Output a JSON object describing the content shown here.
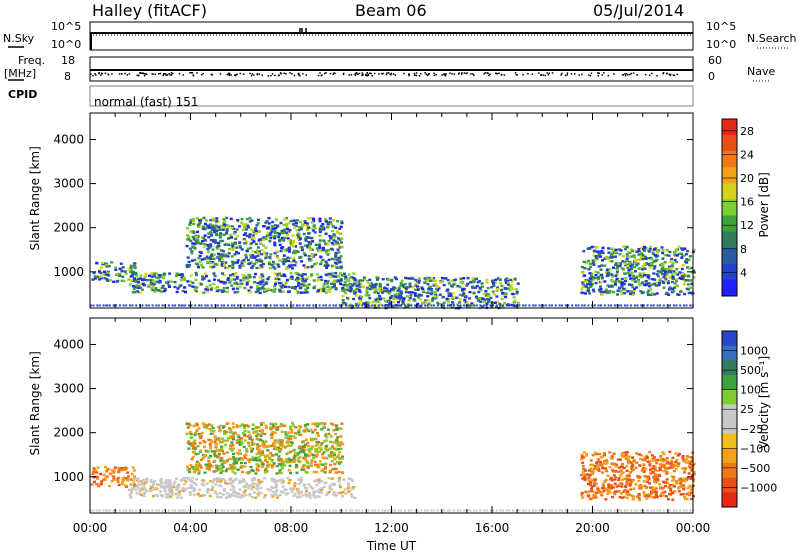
{
  "header": {
    "station": "Halley (fitACF)",
    "beam": "Beam 06",
    "date": "05/Jul/2014"
  },
  "strip_labels": {
    "nsky": "N.Sky",
    "nsky_top": "10^5",
    "nsky_bottom": "10^0",
    "nsearch": "N.Search",
    "nsearch_top": "10^5",
    "nsearch_bottom": "10^0",
    "freq_line1": "Freq.",
    "freq_line2": "[MHz]",
    "freq_top": "18",
    "freq_bottom": "8",
    "nave": "Nave",
    "nave_top": "60",
    "nave_bottom": "0",
    "cpid": "CPID",
    "cpid_value": "normal (fast) 151"
  },
  "chart_data": [
    {
      "type": "heatmap",
      "panel": "power",
      "ylabel": "Slant Range [km]",
      "yticks": [
        "1000",
        "2000",
        "3000",
        "4000"
      ],
      "ylim": [
        180,
        4600
      ],
      "xlim": [
        0,
        24
      ],
      "colorbar": {
        "label": "Power [dB]",
        "ticks": [
          "4",
          "8",
          "12",
          "16",
          "20",
          "24",
          "28"
        ],
        "colors": [
          "#1f1fff",
          "#2442c8",
          "#2c5aa0",
          "#2e7d5b",
          "#3ea33c",
          "#7ccf2e",
          "#d6d21b",
          "#f2a118",
          "#f07a17",
          "#e8501a",
          "#e52817"
        ],
        "range": [
          0,
          30
        ]
      },
      "echo_regions": [
        {
          "t0": 0.0,
          "t1": 1.8,
          "r0": 800,
          "r1": 1250,
          "level": "mixed"
        },
        {
          "t0": 1.5,
          "t1": 10.5,
          "r0": 550,
          "r1": 1000,
          "level": "mixed"
        },
        {
          "t0": 3.8,
          "t1": 10.0,
          "r0": 1100,
          "r1": 2250,
          "level": "mixed"
        },
        {
          "t0": 10.0,
          "t1": 17.0,
          "r0": 200,
          "r1": 900,
          "level": "weak"
        },
        {
          "t0": 19.5,
          "t1": 24.0,
          "r0": 500,
          "r1": 1600,
          "level": "mixed"
        }
      ]
    },
    {
      "type": "heatmap",
      "panel": "velocity",
      "ylabel": "Slant Range [km]",
      "yticks": [
        "1000",
        "2000",
        "3000",
        "4000"
      ],
      "ylim": [
        180,
        4600
      ],
      "xlim": [
        0,
        24
      ],
      "xticks": [
        "00:00",
        "04:00",
        "08:00",
        "12:00",
        "16:00",
        "20:00",
        "00:00"
      ],
      "xlabel": "Time UT",
      "colorbar": {
        "label": "Velocity [m s⁻¹]",
        "ticks": [
          "1000",
          "500",
          "100",
          "25",
          "−25",
          "−100",
          "−500",
          "−1000"
        ],
        "colors": [
          "#2a46c9",
          "#3a6fbf",
          "#2e7d5b",
          "#3ea33c",
          "#7ccf2e",
          "#c8c8c8",
          "#c8c8c8",
          "#f2c018",
          "#f2a118",
          "#f07a17",
          "#e8501a",
          "#e52817"
        ],
        "range": [
          -1200,
          1200
        ]
      },
      "echo_regions": [
        {
          "t0": 0.0,
          "t1": 1.8,
          "r0": 800,
          "r1": 1250,
          "level": "orange"
        },
        {
          "t0": 1.5,
          "t1": 10.5,
          "r0": 550,
          "r1": 1000,
          "level": "grey"
        },
        {
          "t0": 3.8,
          "t1": 10.0,
          "r0": 1100,
          "r1": 2250,
          "level": "orange-green"
        },
        {
          "t0": 19.5,
          "t1": 24.0,
          "r0": 500,
          "r1": 1600,
          "level": "orange"
        }
      ]
    }
  ]
}
